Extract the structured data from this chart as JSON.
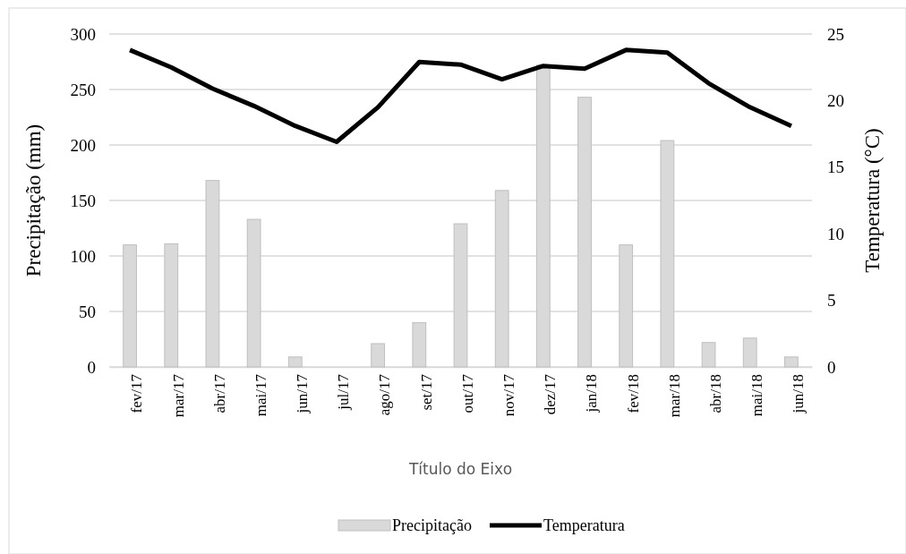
{
  "chart_data": {
    "type": "bar",
    "xlabel": "Título do Eixo",
    "ylabel": "Precipitação (mm)",
    "y2label": "Temperatura (°C)",
    "categories": [
      "fev/17",
      "mar/17",
      "abr/17",
      "mai/17",
      "jun/17",
      "jul/17",
      "ago/17",
      "set/17",
      "out/17",
      "nov/17",
      "dez/17",
      "jan/18",
      "fev/18",
      "mar/18",
      "abr/18",
      "mai/18",
      "jun/18"
    ],
    "series": [
      {
        "name": "Precipitação",
        "color": "#d9d9d9",
        "values": [
          110,
          111,
          168,
          133,
          9,
          0,
          21,
          40,
          129,
          159,
          272,
          243,
          110,
          204,
          22,
          26,
          9
        ]
      },
      {
        "name": "Temperatura",
        "type": "line",
        "axis": "y2",
        "color": "#000000",
        "values": [
          23.8,
          22.5,
          20.9,
          19.6,
          18.1,
          16.9,
          19.5,
          22.9,
          22.7,
          21.6,
          22.6,
          22.4,
          23.8,
          23.6,
          21.3,
          19.5,
          18.1
        ]
      }
    ],
    "ylim": [
      0,
      300
    ],
    "yticks": [
      0,
      50,
      100,
      150,
      200,
      250,
      300
    ],
    "y2lim": [
      0,
      25
    ],
    "y2ticks": [
      0,
      5,
      10,
      15,
      20,
      25
    ],
    "grid": "y",
    "legend": "bottom",
    "marker": "none",
    "line_style": "solid"
  }
}
